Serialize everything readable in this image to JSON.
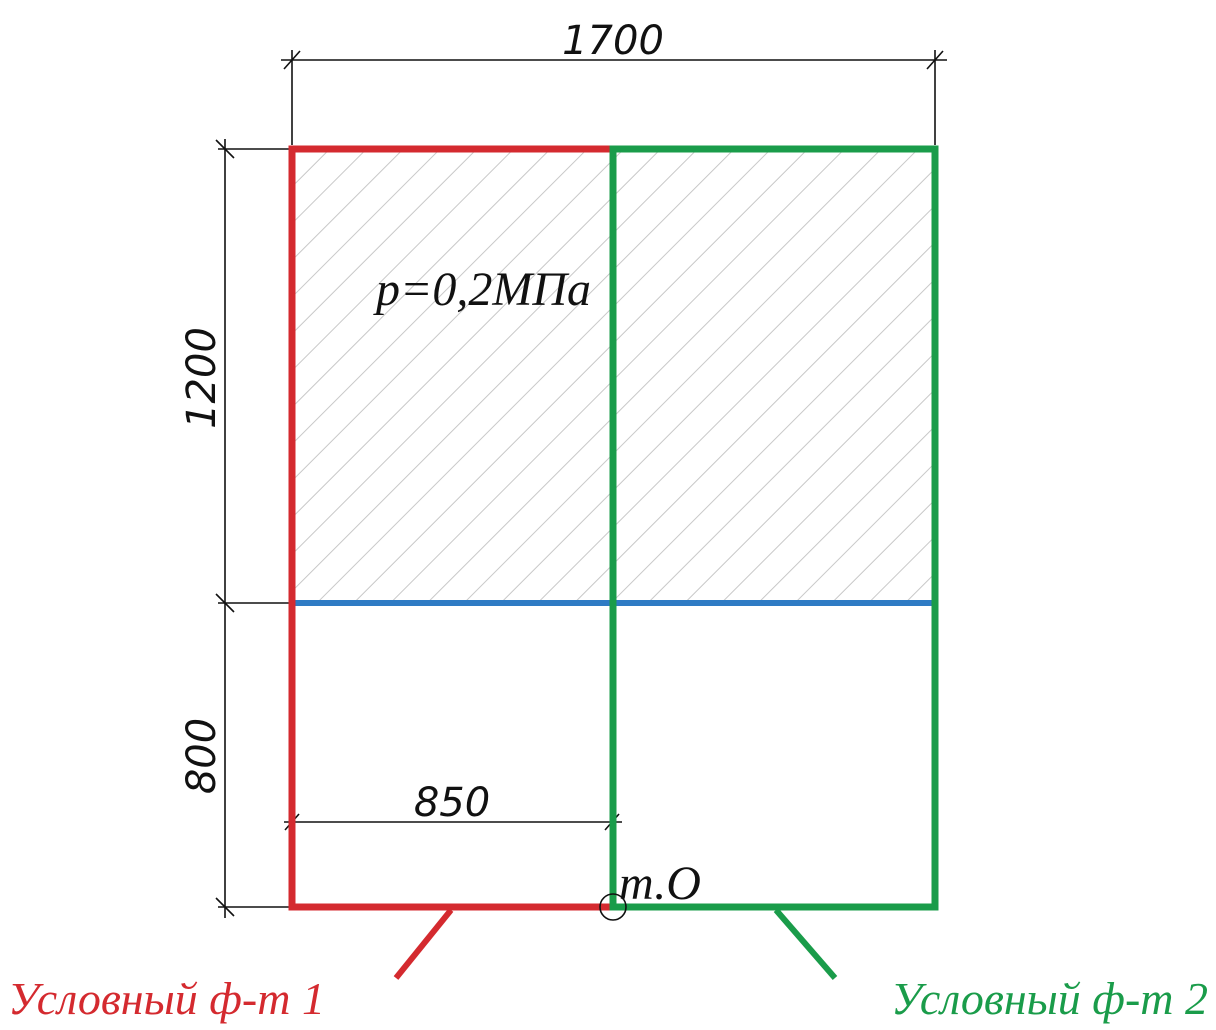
{
  "diagram": {
    "dimensions": {
      "width_total": "1700",
      "height_upper": "1200",
      "height_lower": "800",
      "offset_inner": "850"
    },
    "pressure_label": "p=0,2МПа",
    "point_label": "т.О",
    "foundation_1_label": "Условный ф-т 1",
    "foundation_2_label": "Условный ф-т 2",
    "colors": {
      "foundation_1": "#d42a2f",
      "foundation_2": "#1a9c4a",
      "axis_line": "#2f7bc4",
      "hatch": "#c8c8c8",
      "dimension_lines": "#111111"
    }
  }
}
